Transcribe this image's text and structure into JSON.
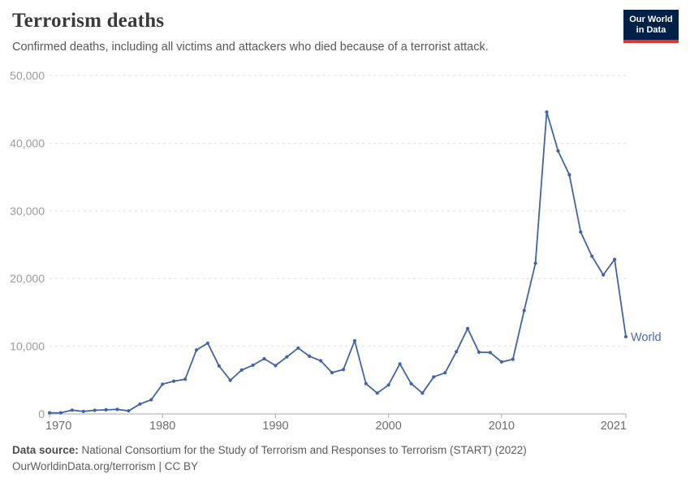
{
  "header": {
    "title": "Terrorism deaths",
    "subtitle": "Confirmed deaths, including all victims and attackers who died because of a terrorist attack.",
    "logo": {
      "line1": "Our World",
      "line2": "in Data"
    }
  },
  "chart_data": {
    "type": "line",
    "title": "Terrorism deaths",
    "x": [
      1970,
      1971,
      1972,
      1973,
      1974,
      1975,
      1976,
      1977,
      1978,
      1979,
      1980,
      1981,
      1982,
      1983,
      1984,
      1985,
      1986,
      1987,
      1988,
      1989,
      1990,
      1991,
      1992,
      1993,
      1994,
      1995,
      1996,
      1997,
      1998,
      1999,
      2000,
      2001,
      2002,
      2003,
      2004,
      2005,
      2006,
      2007,
      2008,
      2009,
      2010,
      2011,
      2012,
      2013,
      2014,
      2015,
      2016,
      2017,
      2018,
      2019,
      2020,
      2021
    ],
    "series": [
      {
        "name": "World",
        "values": [
          171,
          173,
          566,
          370,
          539,
          617,
          672,
          456,
          1459,
          2100,
          4400,
          4850,
          5135,
          9444,
          10450,
          7094,
          4976,
          6482,
          7208,
          8152,
          7148,
          8429,
          9742,
          8520,
          7857,
          6104,
          6560,
          10813,
          4470,
          3080,
          4280,
          7400,
          4470,
          3080,
          5480,
          6080,
          9200,
          12630,
          9120,
          9080,
          7680,
          8070,
          15270,
          22270,
          44600,
          38850,
          35320,
          26880,
          23300,
          20550,
          22830,
          11420
        ]
      }
    ],
    "xlabel": "",
    "ylabel": "",
    "xlim": [
      1970,
      2021
    ],
    "ylim": [
      0,
      50000
    ],
    "x_ticks": [
      1970,
      1980,
      1990,
      2000,
      2010,
      2021
    ],
    "x_tick_labels": [
      "1970",
      "1980",
      "1990",
      "2000",
      "2010",
      "2021"
    ],
    "y_ticks": [
      0,
      10000,
      20000,
      30000,
      40000,
      50000
    ],
    "y_tick_labels": [
      "0",
      "10,000",
      "20,000",
      "30,000",
      "40,000",
      "50,000"
    ],
    "grid": "horizontal dashed",
    "legend": "end-of-line label",
    "end_label": "World"
  },
  "footer": {
    "source_label": "Data source:",
    "source_text": " National Consortium for the Study of Terrorism and Responses to Terrorism (START) (2022)",
    "license": "OurWorldinData.org/terrorism | CC BY"
  },
  "colors": {
    "line": "#4263a7",
    "end_label": "#4a6bab",
    "grid": "#dedede",
    "axis": "#a9a9a9",
    "y_tick_text": "#9b9b9b",
    "x_tick_text": "#6b6b6b",
    "logo_bg": "#002147",
    "logo_accent": "#d73a2d"
  }
}
